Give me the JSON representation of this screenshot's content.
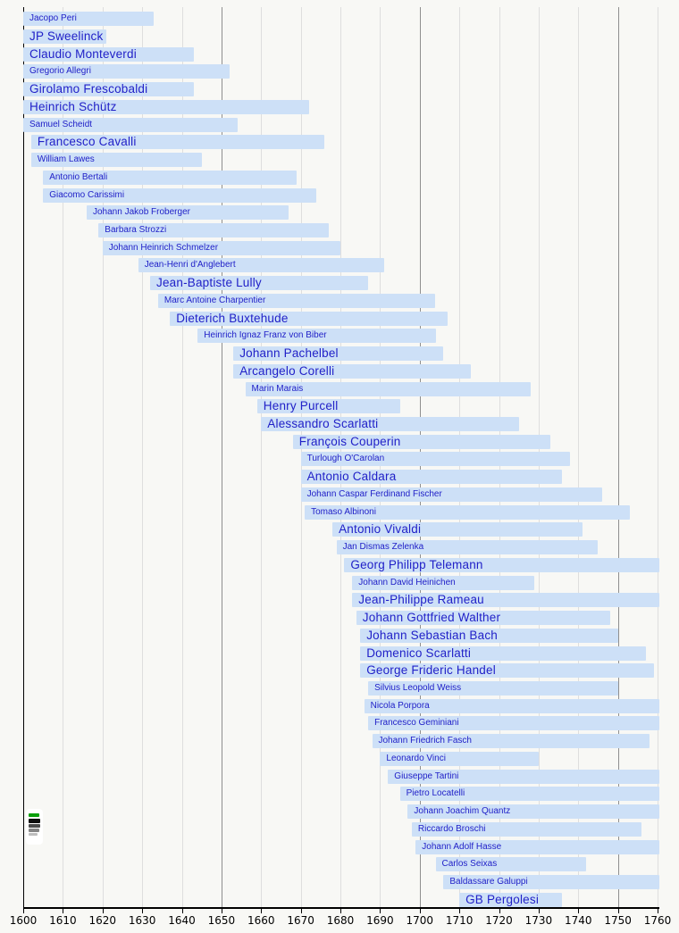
{
  "chart_data": {
    "type": "bar",
    "subtype": "timeline-gantt-of-lifespans",
    "title": "",
    "xlabel": "",
    "ylabel": "",
    "legend_position": "none",
    "grid": "vertical-decade-lines",
    "axis": {
      "start": 1600,
      "end": 1760,
      "tick_step": 10
    },
    "colors": {
      "background": "#f8f8f5",
      "bar_fill": "#cde0f7",
      "label_text": "#2121c8",
      "gridline_light": "#dedede",
      "gridline_half_century": "#8f8f8f",
      "axis_line": "#000000"
    },
    "composers": [
      {
        "name": "Jacopo Peri",
        "start": 1600,
        "end": 1633,
        "cut_left": true,
        "cut_right": false,
        "size": "small"
      },
      {
        "name": "JP Sweelinck",
        "start": 1600,
        "end": 1621,
        "cut_left": true,
        "cut_right": false,
        "size": "large"
      },
      {
        "name": "Claudio Monteverdi",
        "start": 1600,
        "end": 1643,
        "cut_left": true,
        "cut_right": false,
        "size": "large"
      },
      {
        "name": "Gregorio Allegri",
        "start": 1600,
        "end": 1652,
        "cut_left": true,
        "cut_right": false,
        "size": "small"
      },
      {
        "name": "Girolamo Frescobaldi",
        "start": 1600,
        "end": 1643,
        "cut_left": true,
        "cut_right": false,
        "size": "large"
      },
      {
        "name": "Heinrich Schütz",
        "start": 1600,
        "end": 1672,
        "cut_left": true,
        "cut_right": false,
        "size": "large"
      },
      {
        "name": "Samuel Scheidt",
        "start": 1600,
        "end": 1654,
        "cut_left": true,
        "cut_right": false,
        "size": "small"
      },
      {
        "name": "Francesco Cavalli",
        "start": 1602,
        "end": 1676,
        "cut_left": false,
        "cut_right": false,
        "size": "large"
      },
      {
        "name": "William Lawes",
        "start": 1602,
        "end": 1645,
        "cut_left": false,
        "cut_right": false,
        "size": "small"
      },
      {
        "name": "Antonio Bertali",
        "start": 1605,
        "end": 1669,
        "cut_left": false,
        "cut_right": false,
        "size": "small"
      },
      {
        "name": "Giacomo Carissimi",
        "start": 1605,
        "end": 1674,
        "cut_left": false,
        "cut_right": false,
        "size": "small"
      },
      {
        "name": "Johann Jakob Froberger",
        "start": 1616,
        "end": 1667,
        "cut_left": false,
        "cut_right": false,
        "size": "small"
      },
      {
        "name": "Barbara Strozzi",
        "start": 1619,
        "end": 1677,
        "cut_left": false,
        "cut_right": false,
        "size": "small"
      },
      {
        "name": "Johann Heinrich Schmelzer",
        "start": 1620,
        "end": 1680,
        "cut_left": false,
        "cut_right": false,
        "size": "small"
      },
      {
        "name": "Jean-Henri d'Anglebert",
        "start": 1629,
        "end": 1691,
        "cut_left": false,
        "cut_right": false,
        "size": "small"
      },
      {
        "name": "Jean-Baptiste Lully",
        "start": 1632,
        "end": 1687,
        "cut_left": false,
        "cut_right": false,
        "size": "large"
      },
      {
        "name": "Marc Antoine Charpentier",
        "start": 1634,
        "end": 1704,
        "cut_left": false,
        "cut_right": false,
        "size": "small"
      },
      {
        "name": "Dieterich Buxtehude",
        "start": 1637,
        "end": 1707,
        "cut_left": false,
        "cut_right": false,
        "size": "large"
      },
      {
        "name": "Heinrich Ignaz Franz von Biber",
        "start": 1644,
        "end": 1704,
        "cut_left": false,
        "cut_right": false,
        "size": "small"
      },
      {
        "name": "Johann Pachelbel",
        "start": 1653,
        "end": 1706,
        "cut_left": false,
        "cut_right": false,
        "size": "large"
      },
      {
        "name": "Arcangelo Corelli",
        "start": 1653,
        "end": 1713,
        "cut_left": false,
        "cut_right": false,
        "size": "large"
      },
      {
        "name": "Marin Marais",
        "start": 1656,
        "end": 1728,
        "cut_left": false,
        "cut_right": false,
        "size": "small"
      },
      {
        "name": "Henry Purcell",
        "start": 1659,
        "end": 1695,
        "cut_left": false,
        "cut_right": false,
        "size": "large"
      },
      {
        "name": "Alessandro Scarlatti",
        "start": 1660,
        "end": 1725,
        "cut_left": false,
        "cut_right": false,
        "size": "large"
      },
      {
        "name": "François Couperin",
        "start": 1668,
        "end": 1733,
        "cut_left": false,
        "cut_right": false,
        "size": "large"
      },
      {
        "name": "Turlough O'Carolan",
        "start": 1670,
        "end": 1738,
        "cut_left": false,
        "cut_right": false,
        "size": "small"
      },
      {
        "name": "Antonio Caldara",
        "start": 1670,
        "end": 1736,
        "cut_left": false,
        "cut_right": false,
        "size": "large"
      },
      {
        "name": "Johann Caspar Ferdinand Fischer",
        "start": 1670,
        "end": 1746,
        "cut_left": false,
        "cut_right": false,
        "size": "small"
      },
      {
        "name": "Tomaso Albinoni",
        "start": 1671,
        "end": 1753,
        "cut_left": false,
        "cut_right": false,
        "size": "small"
      },
      {
        "name": "Antonio Vivaldi",
        "start": 1678,
        "end": 1741,
        "cut_left": false,
        "cut_right": false,
        "size": "large"
      },
      {
        "name": "Jan Dismas Zelenka",
        "start": 1679,
        "end": 1745,
        "cut_left": false,
        "cut_right": false,
        "size": "small"
      },
      {
        "name": "Georg Philipp Telemann",
        "start": 1681,
        "end": 1760,
        "cut_left": false,
        "cut_right": true,
        "size": "large"
      },
      {
        "name": "Johann David Heinichen",
        "start": 1683,
        "end": 1729,
        "cut_left": false,
        "cut_right": false,
        "size": "small"
      },
      {
        "name": "Jean-Philippe Rameau",
        "start": 1683,
        "end": 1760,
        "cut_left": false,
        "cut_right": true,
        "size": "large"
      },
      {
        "name": "Johann Gottfried Walther",
        "start": 1684,
        "end": 1748,
        "cut_left": false,
        "cut_right": false,
        "size": "large"
      },
      {
        "name": "Johann Sebastian Bach",
        "start": 1685,
        "end": 1750,
        "cut_left": false,
        "cut_right": false,
        "size": "large"
      },
      {
        "name": "Domenico Scarlatti",
        "start": 1685,
        "end": 1757,
        "cut_left": false,
        "cut_right": false,
        "size": "large"
      },
      {
        "name": "George Frideric Handel",
        "start": 1685,
        "end": 1759,
        "cut_left": false,
        "cut_right": false,
        "size": "large"
      },
      {
        "name": "Silvius Leopold Weiss",
        "start": 1687,
        "end": 1750,
        "cut_left": false,
        "cut_right": false,
        "size": "small"
      },
      {
        "name": "Nicola Porpora",
        "start": 1686,
        "end": 1760,
        "cut_left": false,
        "cut_right": true,
        "size": "small"
      },
      {
        "name": "Francesco Geminiani",
        "start": 1687,
        "end": 1760,
        "cut_left": false,
        "cut_right": true,
        "size": "small"
      },
      {
        "name": "Johann Friedrich Fasch",
        "start": 1688,
        "end": 1758,
        "cut_left": false,
        "cut_right": false,
        "size": "small"
      },
      {
        "name": "Leonardo Vinci",
        "start": 1690,
        "end": 1730,
        "cut_left": false,
        "cut_right": false,
        "size": "small"
      },
      {
        "name": "Giuseppe Tartini",
        "start": 1692,
        "end": 1760,
        "cut_left": false,
        "cut_right": true,
        "size": "small"
      },
      {
        "name": "Pietro Locatelli",
        "start": 1695,
        "end": 1760,
        "cut_left": false,
        "cut_right": true,
        "size": "small"
      },
      {
        "name": "Johann Joachim Quantz",
        "start": 1697,
        "end": 1760,
        "cut_left": false,
        "cut_right": true,
        "size": "small"
      },
      {
        "name": "Riccardo Broschi",
        "start": 1698,
        "end": 1756,
        "cut_left": false,
        "cut_right": false,
        "size": "small"
      },
      {
        "name": "Johann Adolf Hasse",
        "start": 1699,
        "end": 1760,
        "cut_left": false,
        "cut_right": true,
        "size": "small"
      },
      {
        "name": "Carlos Seixas",
        "start": 1704,
        "end": 1742,
        "cut_left": false,
        "cut_right": false,
        "size": "small"
      },
      {
        "name": "Baldassare Galuppi",
        "start": 1706,
        "end": 1760,
        "cut_left": false,
        "cut_right": true,
        "size": "small"
      },
      {
        "name": "GB Pergolesi",
        "start": 1710,
        "end": 1736,
        "cut_left": false,
        "cut_right": false,
        "size": "large"
      }
    ]
  },
  "footer": {
    "easytimeline_icon": "easytimeline-logo"
  }
}
